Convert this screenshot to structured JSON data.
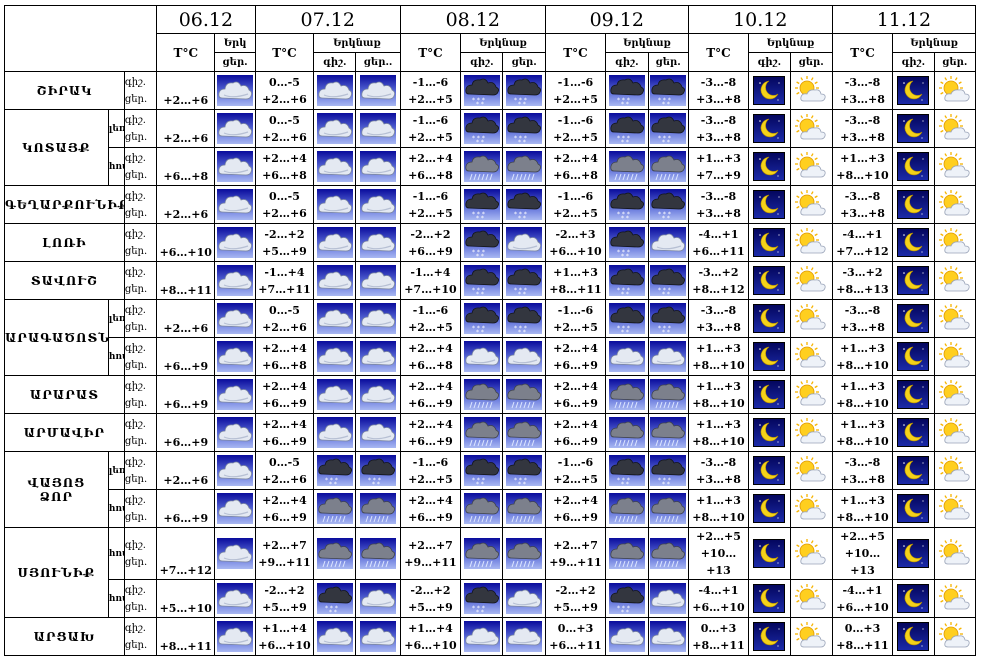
{
  "dates": [
    "06.12",
    "07.12",
    "08.12",
    "09.12",
    "10.12",
    "11.12"
  ],
  "temp_label": "T°C",
  "weather_label": "Երկնաք",
  "weather_label_short": "Երկ",
  "night_label": "գիշ.",
  "day_label": "ցեր.",
  "day_label_cut": "ցեր..",
  "regions": [
    {
      "name": "ՇԻՐԱԿ",
      "subs": [
        {
          "name": "",
          "night": [
            "+2…+6",
            "0…-5\n+2…+6",
            "-1…-6\n+2…+5",
            "-1…-6\n+2…+5",
            "-3…-8\n+3…+8",
            "-3…-8\n+3…+8"
          ]
        }
      ]
    },
    {
      "name": "ԿՈՏԱՅՔ",
      "subs": [
        {
          "name": "լեռ.",
          "night": [
            "+2…+6",
            "0…-5\n+2…+6",
            "-1…-6\n+2…+5",
            "-1…-6\n+2…+5",
            "-3…-8\n+3…+8",
            "-3…-8\n+3…+8"
          ]
        },
        {
          "name": "հով.",
          "night": [
            "+6…+8",
            "+2…+4\n+6…+8",
            "+2…+4\n+6…+8",
            "+2…+4\n+6…+8",
            "+1…+3\n+7…+9",
            "+1…+3\n+8…+10"
          ]
        }
      ]
    },
    {
      "name": "ԳԵՂԱՐՔՈՒՆԻՔ",
      "subs": [
        {
          "name": "",
          "night": [
            "+2…+6",
            "0…-5\n+2…+6",
            "-1…-6\n+2…+5",
            "-1…-6\n+2…+5",
            "-3…-8\n+3…+8",
            "-3…-8\n+3…+8"
          ]
        }
      ]
    },
    {
      "name": "ԼՈՌԻ",
      "subs": [
        {
          "name": "",
          "night": [
            "+6…+10",
            "-2…+2\n+5…+9",
            "-2…+2\n+6…+9",
            "-2…+3\n+6…+10",
            "-4…+1\n+6…+11",
            "-4…+1\n+7…+12"
          ]
        }
      ]
    },
    {
      "name": "ՏԱՎՈՒՇ",
      "subs": [
        {
          "name": "",
          "night": [
            "+8…+11",
            "-1…+4\n+7…+11",
            "-1…+4\n+7…+10",
            "+1…+3\n+8…+11",
            "-3…+2\n+8…+12",
            "-3…+2\n+8…+13"
          ]
        }
      ]
    },
    {
      "name": "ԱՐԱԳԱԾՈՏՆ",
      "subs": [
        {
          "name": "լեռ.",
          "night": [
            "+2…+6",
            "0…-5\n+2…+6",
            "-1…-6\n+2…+5",
            "-1…-6\n+2…+5",
            "-3…-8\n+3…+8",
            "-3…-8\n+3…+8"
          ]
        },
        {
          "name": "հով",
          "night": [
            "+6…+9",
            "+2…+4\n+6…+8",
            "+2…+4\n+6…+8",
            "+2…+4\n+6…+9",
            "+1…+3\n+8…+10",
            "+1…+3\n+8…+10"
          ]
        }
      ]
    },
    {
      "name": "ԱՐԱՐԱՏ",
      "subs": [
        {
          "name": "",
          "night": [
            "+6…+9",
            "+2…+4\n+6…+9",
            "+2…+4\n+6…+9",
            "+2…+4\n+6…+9",
            "+1…+3\n+8…+10",
            "+1…+3\n+8…+10"
          ]
        }
      ]
    },
    {
      "name": "ԱՐՄԱՎԻՐ",
      "subs": [
        {
          "name": "",
          "night": [
            "+6…+9",
            "+2…+4\n+6…+9",
            "+2…+4\n+6…+9",
            "+2…+4\n+6…+9",
            "+1…+3\n+8…+10",
            "+1…+3\n+8…+10"
          ]
        }
      ]
    },
    {
      "name": "ՎԱՅՈՑ\nՁՈՐ",
      "subs": [
        {
          "name": "լեռ.",
          "night": [
            "+2…+6",
            "0…-5\n+2…+6",
            "-1…-6\n+2…+5",
            "-1…-6\n+2…+5",
            "-3…-8\n+3…+8",
            "-3…-8\n+3…+8"
          ]
        },
        {
          "name": "հով",
          "night": [
            "+6…+9",
            "+2…+4\n+6…+9",
            "+2…+4\n+6…+9",
            "+2…+4\n+6…+9",
            "+1…+3\n+8…+10",
            "+1…+3\n+8…+10"
          ]
        }
      ]
    },
    {
      "name": "ՍՅՈՒՆԻՔ",
      "subs": [
        {
          "name": "հով.",
          "night": [
            "+7…+12",
            "+2…+7\n+9…+11",
            "+2…+7\n+9…+11",
            "+2…+7\n+9…+11",
            "+2…+5\n+10…+13",
            "+2…+5\n+10…+13"
          ]
        },
        {
          "name": "հով",
          "night": [
            "+5…+10",
            "-2…+2\n+5…+9",
            "-2…+2\n+5…+9",
            "-2…+2\n+5…+9",
            "-4…+1\n+6…+10",
            "-4…+1\n+6…+10"
          ]
        }
      ]
    },
    {
      "name": "ԱՐՑԱԽ",
      "subs": [
        {
          "name": "",
          "night": [
            "+8…+11",
            "+1…+4\n+6…+10",
            "+1…+4\n+6…+10",
            "0…+3\n+6…+11",
            "0…+3\n+8…+11",
            "0…+3\n+8…+11"
          ]
        }
      ]
    }
  ],
  "icons": {
    "cloud": "cloud-icon",
    "snow": "snow-cloud-icon",
    "rain": "rain-cloud-icon",
    "moon": "moon-icon",
    "sun": "sun-cloud-icon"
  },
  "icon_rows": [
    [
      "cloud",
      "cloud",
      "cloud",
      "snow",
      "snow",
      "snow",
      "snow",
      "moon",
      "sun",
      "moon",
      "sun"
    ],
    [
      "cloud",
      "cloud",
      "cloud",
      "snow",
      "snow",
      "snow",
      "snow",
      "moon",
      "sun",
      "moon",
      "sun"
    ],
    [
      "cloud",
      "cloud",
      "cloud",
      "rain",
      "rain",
      "rain",
      "rain",
      "moon",
      "sun",
      "moon",
      "sun"
    ],
    [
      "cloud",
      "cloud",
      "cloud",
      "snow",
      "snow",
      "snow",
      "snow",
      "moon",
      "sun",
      "moon",
      "sun"
    ],
    [
      "cloud",
      "cloud",
      "cloud",
      "snow",
      "cloud",
      "snow",
      "cloud",
      "moon",
      "sun",
      "moon",
      "sun"
    ],
    [
      "cloud",
      "cloud",
      "cloud",
      "snow",
      "snow",
      "snow",
      "snow",
      "moon",
      "sun",
      "moon",
      "sun"
    ],
    [
      "cloud",
      "cloud",
      "cloud",
      "snow",
      "snow",
      "snow",
      "snow",
      "moon",
      "sun",
      "moon",
      "sun"
    ],
    [
      "cloud",
      "cloud",
      "cloud",
      "cloud",
      "cloud",
      "cloud",
      "cloud",
      "moon",
      "sun",
      "moon",
      "sun"
    ],
    [
      "cloud",
      "cloud",
      "cloud",
      "rain",
      "rain",
      "rain",
      "rain",
      "moon",
      "sun",
      "moon",
      "sun"
    ],
    [
      "cloud",
      "cloud",
      "cloud",
      "rain",
      "rain",
      "rain",
      "rain",
      "moon",
      "sun",
      "moon",
      "sun"
    ],
    [
      "cloud",
      "snow",
      "snow",
      "snow",
      "snow",
      "snow",
      "snow",
      "moon",
      "sun",
      "moon",
      "sun"
    ],
    [
      "cloud",
      "rain",
      "rain",
      "rain",
      "rain",
      "rain",
      "rain",
      "moon",
      "sun",
      "moon",
      "sun"
    ],
    [
      "cloud",
      "rain",
      "rain",
      "rain",
      "rain",
      "rain",
      "rain",
      "moon",
      "sun",
      "moon",
      "sun"
    ],
    [
      "cloud",
      "snow",
      "cloud",
      "snow",
      "cloud",
      "snow",
      "cloud",
      "moon",
      "sun",
      "moon",
      "sun"
    ],
    [
      "cloud",
      "cloud",
      "cloud",
      "cloud",
      "cloud",
      "cloud",
      "cloud",
      "moon",
      "sun",
      "moon",
      "sun"
    ]
  ]
}
